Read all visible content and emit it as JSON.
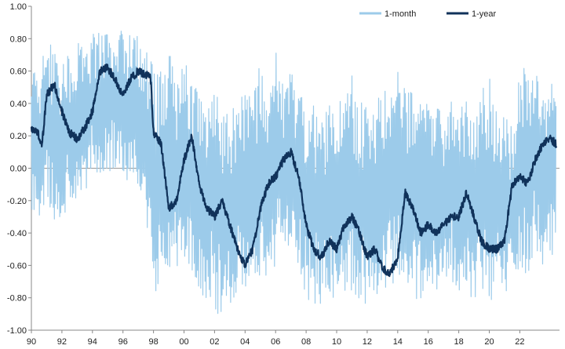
{
  "chart_data": {
    "type": "line",
    "title": "",
    "xlabel": "",
    "ylabel": "",
    "xlim": [
      1990,
      2024.6
    ],
    "ylim": [
      -1.0,
      1.0
    ],
    "y_ticks": [
      "1.00",
      "0.80",
      "0.60",
      "0.40",
      "0.20",
      "0.00",
      "-0.20",
      "-0.40",
      "-0.60",
      "-0.80",
      "-1.00"
    ],
    "y_tick_values": [
      1.0,
      0.8,
      0.6,
      0.4,
      0.2,
      0.0,
      -0.2,
      -0.4,
      -0.6,
      -0.8,
      -1.0
    ],
    "x_ticks": [
      "90",
      "92",
      "94",
      "96",
      "98",
      "00",
      "02",
      "04",
      "06",
      "08",
      "10",
      "12",
      "14",
      "16",
      "18",
      "20",
      "22"
    ],
    "x_tick_values": [
      1990,
      1992,
      1994,
      1996,
      1998,
      2000,
      2002,
      2004,
      2006,
      2008,
      2010,
      2012,
      2014,
      2016,
      2018,
      2020,
      2022
    ],
    "grid": false,
    "zero_line": true,
    "legend_position": "top-right",
    "series": [
      {
        "name": "1-month",
        "color": "#9ccbea",
        "stroke": "thin",
        "envelope": {
          "x": [
            1990,
            1990.5,
            1991,
            1991.5,
            1992,
            1992.5,
            1993,
            1993.5,
            1994,
            1994.5,
            1995,
            1995.5,
            1996,
            1996.5,
            1997,
            1997.5,
            1998,
            1998.5,
            1999,
            1999.5,
            2000,
            2000.5,
            2001,
            2001.5,
            2002,
            2002.5,
            2003,
            2003.5,
            2004,
            2004.5,
            2005,
            2005.5,
            2006,
            2006.5,
            2007,
            2007.5,
            2008,
            2008.5,
            2009,
            2009.5,
            2010,
            2010.5,
            2011,
            2011.5,
            2012,
            2012.5,
            2013,
            2013.5,
            2014,
            2014.5,
            2015,
            2015.5,
            2016,
            2016.5,
            2017,
            2017.5,
            2018,
            2018.5,
            2019,
            2019.5,
            2020,
            2020.5,
            2021,
            2021.5,
            2022,
            2022.5,
            2023,
            2023.5,
            2024,
            2024.4
          ],
          "upper": [
            0.55,
            0.68,
            0.75,
            0.78,
            0.65,
            0.72,
            0.8,
            0.82,
            0.85,
            0.84,
            0.85,
            0.85,
            0.86,
            0.84,
            0.82,
            0.75,
            0.7,
            0.6,
            0.78,
            0.6,
            0.82,
            0.55,
            0.45,
            0.42,
            0.5,
            0.45,
            0.35,
            0.42,
            0.6,
            0.55,
            0.7,
            0.5,
            0.72,
            0.6,
            0.62,
            0.5,
            0.4,
            0.45,
            0.3,
            0.42,
            0.35,
            0.5,
            0.6,
            0.42,
            0.4,
            0.5,
            0.45,
            0.55,
            0.6,
            0.55,
            0.5,
            0.4,
            0.45,
            0.42,
            0.3,
            0.45,
            0.5,
            0.42,
            0.3,
            0.55,
            0.6,
            0.42,
            0.3,
            0.35,
            0.66,
            0.6,
            0.62,
            0.55,
            0.55,
            0.45
          ],
          "lower": [
            -0.25,
            -0.3,
            -0.2,
            -0.35,
            -0.38,
            -0.2,
            -0.2,
            -0.15,
            -0.05,
            -0.1,
            -0.05,
            0.0,
            -0.1,
            -0.05,
            -0.1,
            -0.3,
            -0.78,
            -0.75,
            -0.7,
            -0.62,
            -0.6,
            -0.7,
            -0.78,
            -0.82,
            -0.88,
            -0.92,
            -0.85,
            -0.8,
            -0.78,
            -0.72,
            -0.7,
            -0.68,
            -0.6,
            -0.52,
            -0.5,
            -0.62,
            -0.8,
            -0.85,
            -0.85,
            -0.82,
            -0.78,
            -0.75,
            -0.8,
            -0.82,
            -0.84,
            -0.85,
            -0.82,
            -0.75,
            -0.72,
            -0.75,
            -0.8,
            -0.82,
            -0.78,
            -0.75,
            -0.72,
            -0.78,
            -0.8,
            -0.82,
            -0.8,
            -0.78,
            -0.85,
            -0.82,
            -0.8,
            -0.75,
            -0.7,
            -0.65,
            -0.55,
            -0.6,
            -0.55,
            -0.6
          ]
        }
      },
      {
        "name": "1-year",
        "color": "#10325a",
        "stroke": "thick",
        "x": [
          1990,
          1990.4,
          1990.7,
          1991,
          1991.5,
          1992,
          1992.5,
          1993,
          1993.5,
          1994,
          1994.5,
          1995,
          1995.5,
          1996,
          1996.5,
          1997,
          1997.5,
          1997.8,
          1998,
          1998.5,
          1999,
          1999.5,
          2000,
          2000.5,
          2001,
          2001.5,
          2002,
          2002.5,
          2003,
          2003.5,
          2004,
          2004.5,
          2005,
          2005.5,
          2006,
          2006.5,
          2007,
          2007.5,
          2008,
          2008.5,
          2009,
          2009.5,
          2010,
          2010.5,
          2011,
          2011.5,
          2012,
          2012.5,
          2013,
          2013.5,
          2014,
          2014.5,
          2015,
          2015.5,
          2016,
          2016.5,
          2017,
          2017.5,
          2018,
          2018.5,
          2019,
          2019.5,
          2020,
          2020.5,
          2021,
          2021.5,
          2022,
          2022.5,
          2023,
          2023.5,
          2024,
          2024.4
        ],
        "y": [
          0.25,
          0.22,
          0.15,
          0.45,
          0.52,
          0.35,
          0.22,
          0.18,
          0.25,
          0.35,
          0.6,
          0.62,
          0.55,
          0.45,
          0.55,
          0.6,
          0.58,
          0.58,
          0.22,
          0.15,
          -0.25,
          -0.2,
          0.05,
          0.2,
          -0.1,
          -0.25,
          -0.3,
          -0.2,
          -0.35,
          -0.5,
          -0.6,
          -0.5,
          -0.25,
          -0.1,
          -0.05,
          0.05,
          0.1,
          -0.05,
          -0.35,
          -0.5,
          -0.55,
          -0.45,
          -0.5,
          -0.35,
          -0.3,
          -0.4,
          -0.55,
          -0.5,
          -0.62,
          -0.65,
          -0.55,
          -0.15,
          -0.25,
          -0.4,
          -0.35,
          -0.4,
          -0.35,
          -0.3,
          -0.3,
          -0.15,
          -0.3,
          -0.45,
          -0.5,
          -0.5,
          -0.45,
          -0.1,
          -0.05,
          -0.1,
          0.05,
          0.15,
          0.18,
          0.15
        ]
      }
    ]
  }
}
